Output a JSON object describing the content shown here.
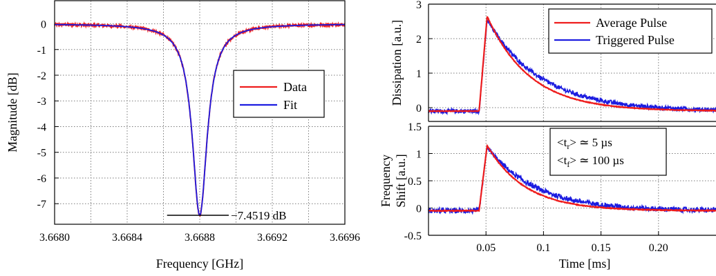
{
  "chart_data": [
    {
      "type": "line",
      "title": "",
      "xlabel": "Frequency [GHz]",
      "ylabel": "Magnitude [dB]",
      "xlim": [
        3.668,
        3.6696
      ],
      "ylim": [
        -7.8,
        0.9
      ],
      "x_ticks": [
        "3.6680",
        "3.6684",
        "3.6688",
        "3.6692",
        "3.6696"
      ],
      "y_ticks": [
        "0",
        "-1",
        "-2",
        "-3",
        "-4",
        "-5",
        "-6",
        "-7"
      ],
      "grid": true,
      "legend_position": "center-right",
      "resonance": {
        "f0": 3.6688,
        "depth_db": -7.4519,
        "half_width_ghz": 5e-05
      },
      "series": [
        {
          "name": "Data",
          "color": "#ee1c1c",
          "style": "noisy"
        },
        {
          "name": "Fit",
          "color": "#1c1ce0",
          "style": "smooth"
        }
      ],
      "annotation": {
        "text": "−7.4519 dB",
        "y": -7.4519,
        "x_from": 3.66862,
        "x_to": 3.66896
      }
    },
    {
      "type": "line",
      "title": "",
      "xlabel": "",
      "ylabel": "Dissipation [a.u.]",
      "xlim": [
        0.0,
        0.25
      ],
      "ylim": [
        -0.4,
        3.0
      ],
      "y_ticks": [
        "0",
        "1",
        "2",
        "3"
      ],
      "grid": true,
      "legend_position": "top-right",
      "series": [
        {
          "name": "Average Pulse",
          "color": "#ee1c1c",
          "baseline": -0.1,
          "rise_start": 0.044,
          "peak_time": 0.051,
          "peak": 2.65,
          "decay_ms": 0.037
        },
        {
          "name": "Triggered Pulse",
          "color": "#1c1ce0",
          "baseline": -0.1,
          "rise_start": 0.044,
          "peak_time": 0.051,
          "peak": 2.55,
          "decay_ms": 0.046
        }
      ]
    },
    {
      "type": "line",
      "title": "",
      "xlabel": "Time [ms]",
      "ylabel_line1": "Frequency",
      "ylabel_line2": "Shift [a.u.]",
      "xlim": [
        0.0,
        0.25
      ],
      "ylim": [
        -0.5,
        1.5
      ],
      "x_ticks": [
        "0.05",
        "0.1",
        "0.15",
        "0.20"
      ],
      "y_ticks": [
        "-0.5",
        "0",
        "0.5",
        "1",
        "1.5"
      ],
      "grid": true,
      "series": [
        {
          "name": "Average Pulse",
          "color": "#ee1c1c",
          "baseline": -0.05,
          "rise_start": 0.044,
          "peak_time": 0.051,
          "peak": 1.15,
          "decay_ms": 0.033
        },
        {
          "name": "Triggered Pulse",
          "color": "#1c1ce0",
          "baseline": -0.05,
          "rise_start": 0.044,
          "peak_time": 0.051,
          "peak": 1.12,
          "decay_ms": 0.042
        }
      ],
      "annotation_box": {
        "tr_value": "≃ 5 µs",
        "tf_value": "≃ 100 µs"
      }
    }
  ]
}
